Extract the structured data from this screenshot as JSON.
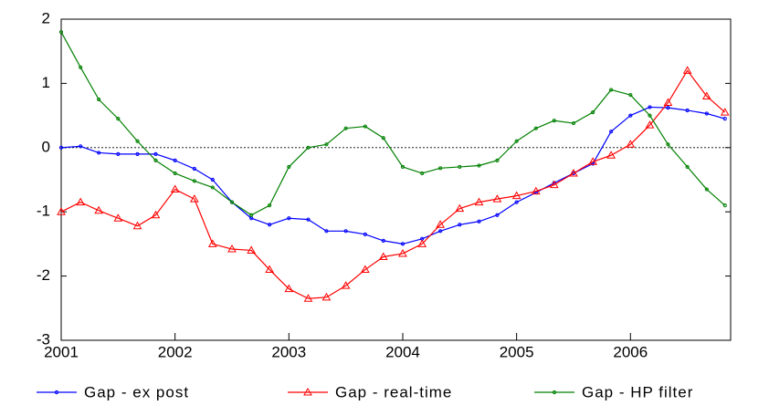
{
  "chart_data": {
    "type": "line",
    "x": [
      2001,
      2001.17,
      2001.33,
      2001.5,
      2001.67,
      2001.83,
      2002,
      2002.17,
      2002.33,
      2002.5,
      2002.67,
      2002.83,
      2003,
      2003.17,
      2003.33,
      2003.5,
      2003.67,
      2003.83,
      2004,
      2004.17,
      2004.33,
      2004.5,
      2004.67,
      2004.83,
      2005,
      2005.17,
      2005.33,
      2005.5,
      2005.67,
      2005.83,
      2006,
      2006.17,
      2006.33,
      2006.5,
      2006.67,
      2006.83
    ],
    "series": [
      {
        "name": "Gap - ex post",
        "color": "#0000ff",
        "marker": "circle",
        "values": [
          0.0,
          0.02,
          -0.08,
          -0.1,
          -0.1,
          -0.1,
          -0.2,
          -0.33,
          -0.5,
          -0.85,
          -1.1,
          -1.2,
          -1.1,
          -1.12,
          -1.3,
          -1.3,
          -1.35,
          -1.45,
          -1.5,
          -1.42,
          -1.3,
          -1.2,
          -1.15,
          -1.05,
          -0.85,
          -0.7,
          -0.55,
          -0.4,
          -0.25,
          0.25,
          0.5,
          0.63,
          0.62,
          0.58,
          0.53,
          0.45
        ]
      },
      {
        "name": "Gap - real-time",
        "color": "#ff0000",
        "marker": "triangle",
        "values": [
          -1.0,
          -0.85,
          -0.98,
          -1.1,
          -1.22,
          -1.05,
          -0.65,
          -0.8,
          -1.5,
          -1.58,
          -1.6,
          -1.9,
          -2.2,
          -2.35,
          -2.33,
          -2.15,
          -1.9,
          -1.7,
          -1.65,
          -1.5,
          -1.2,
          -0.95,
          -0.85,
          -0.8,
          -0.75,
          -0.68,
          -0.58,
          -0.4,
          -0.22,
          -0.12,
          0.05,
          0.35,
          0.7,
          1.2,
          0.8,
          0.55
        ]
      },
      {
        "name": "Gap - HP filter",
        "color": "#008000",
        "marker": "circle",
        "values": [
          1.8,
          1.25,
          0.75,
          0.45,
          0.1,
          -0.2,
          -0.4,
          -0.52,
          -0.62,
          -0.85,
          -1.05,
          -0.9,
          -0.3,
          0.0,
          0.05,
          0.3,
          0.33,
          0.15,
          -0.3,
          -0.4,
          -0.32,
          -0.3,
          -0.28,
          -0.2,
          0.1,
          0.3,
          0.42,
          0.38,
          0.55,
          0.9,
          0.82,
          0.5,
          0.05,
          -0.3,
          -0.65,
          -0.9
        ]
      }
    ],
    "xlim": [
      2001,
      2006.88
    ],
    "xticks": [
      2001,
      2002,
      2003,
      2004,
      2005,
      2006
    ],
    "ylim": [
      -3,
      2
    ],
    "yticks": [
      -3,
      -2,
      -1,
      0,
      1,
      2
    ],
    "grid": false,
    "zero_line": true,
    "legend": "bottom"
  }
}
